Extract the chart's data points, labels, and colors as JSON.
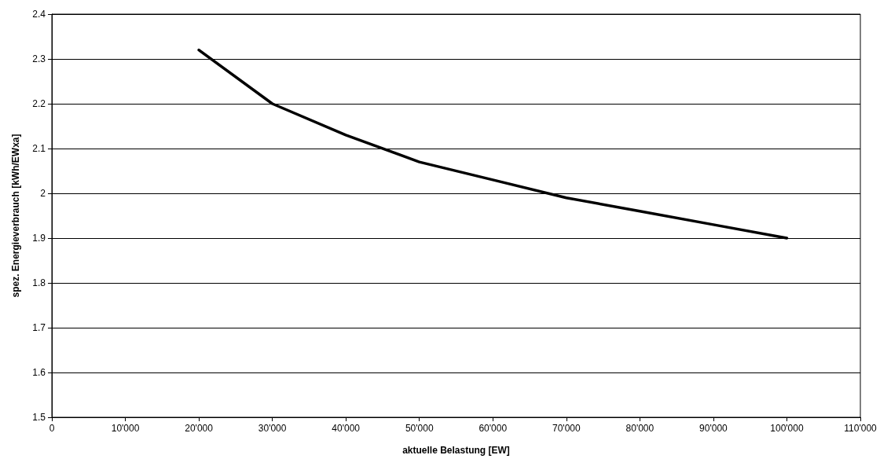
{
  "chart_data": {
    "type": "line",
    "xlabel": "aktuelle Belastung [EW]",
    "ylabel": "spez. Energieverbrauch [kWh/EWxa]",
    "x": [
      20000,
      30000,
      40000,
      50000,
      60000,
      70000,
      80000,
      90000,
      100000
    ],
    "series": [
      {
        "color": "#000000",
        "values": [
          2.32,
          2.2,
          2.13,
          2.07,
          2.03,
          1.99,
          1.96,
          1.93,
          1.9
        ]
      }
    ],
    "xlim": [
      0,
      110000
    ],
    "xticks": [
      0,
      {
        "value": 10000,
        "label": "10'000"
      },
      {
        "value": 20000,
        "label": "20'000"
      },
      {
        "value": 30000,
        "label": "30'000"
      },
      {
        "value": 40000,
        "label": "40'000"
      },
      {
        "value": 50000,
        "label": "50'000"
      },
      {
        "value": 60000,
        "label": "60'000"
      },
      {
        "value": 70000,
        "label": "70'000"
      },
      {
        "value": 80000,
        "label": "80'000"
      },
      {
        "value": 90000,
        "label": "90'000"
      },
      {
        "value": 100000,
        "label": "100'000"
      },
      {
        "value": 110000,
        "label": "110'000"
      }
    ],
    "ylim": [
      1.5,
      2.4
    ],
    "yticks": [
      1.5,
      1.6,
      1.7,
      1.8,
      1.9,
      2,
      2.1,
      2.2,
      2.3,
      2.4
    ],
    "grid": "y",
    "marker": "none",
    "line_style": "solid"
  }
}
